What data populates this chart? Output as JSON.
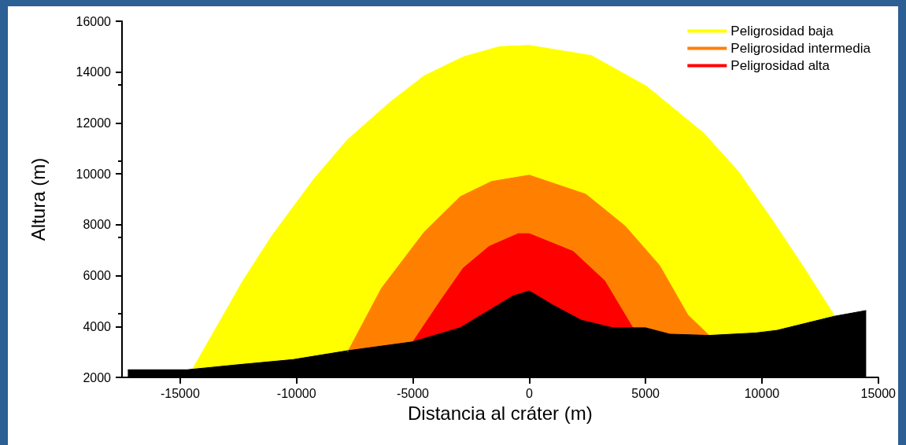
{
  "chart_data": {
    "type": "area",
    "xlabel": "Distancia al cráter (m)",
    "ylabel": "Altura (m)",
    "xlim": [
      -17500,
      15000
    ],
    "ylim": [
      2000,
      16000
    ],
    "xticks": [
      -15000,
      -10000,
      -5000,
      0,
      5000,
      10000,
      15000
    ],
    "yticks": [
      2000,
      4000,
      6000,
      8000,
      10000,
      12000,
      14000,
      16000
    ],
    "legend": "top right",
    "series": [
      {
        "name": "Peligrosidad baja",
        "color": "#ffff00",
        "x": [
          -14450,
          -12300,
          -11070,
          -9250,
          -7800,
          -6000,
          -4520,
          -2830,
          -1280,
          0,
          2670,
          5030,
          7500,
          8980,
          10430,
          11780,
          13130
        ],
        "values": [
          2350,
          5800,
          7550,
          9800,
          11350,
          12800,
          13850,
          14600,
          15000,
          15050,
          14650,
          13450,
          11600,
          10100,
          8200,
          6350,
          4400
        ]
      },
      {
        "name": "Peligrosidad intermedia",
        "color": "#ff8000",
        "x": [
          -7800,
          -6350,
          -4520,
          -2970,
          -1620,
          0,
          2430,
          4120,
          5600,
          6820,
          7730
        ],
        "values": [
          3000,
          5500,
          7700,
          9100,
          9700,
          9950,
          9200,
          7950,
          6400,
          4450,
          3650
        ]
      },
      {
        "name": "Peligrosidad alta",
        "color": "#ff0000",
        "x": [
          -5000,
          -3750,
          -2830,
          -1720,
          -470,
          0,
          1890,
          3240,
          4450
        ],
        "values": [
          3400,
          5100,
          6300,
          7150,
          7650,
          7650,
          6950,
          5800,
          3950
        ]
      },
      {
        "color": "#000000",
        "x": [
          -17250,
          -14700,
          -12500,
          -10150,
          -7800,
          -5000,
          -2970,
          -700,
          0,
          1000,
          2230,
          3580,
          5000,
          6040,
          7730,
          9750,
          10650,
          13100,
          14480
        ],
        "values": [
          2300,
          2300,
          2500,
          2700,
          3050,
          3400,
          3950,
          5200,
          5400,
          4850,
          4250,
          3950,
          3950,
          3700,
          3650,
          3750,
          3850,
          4400,
          4630
        ]
      }
    ]
  }
}
